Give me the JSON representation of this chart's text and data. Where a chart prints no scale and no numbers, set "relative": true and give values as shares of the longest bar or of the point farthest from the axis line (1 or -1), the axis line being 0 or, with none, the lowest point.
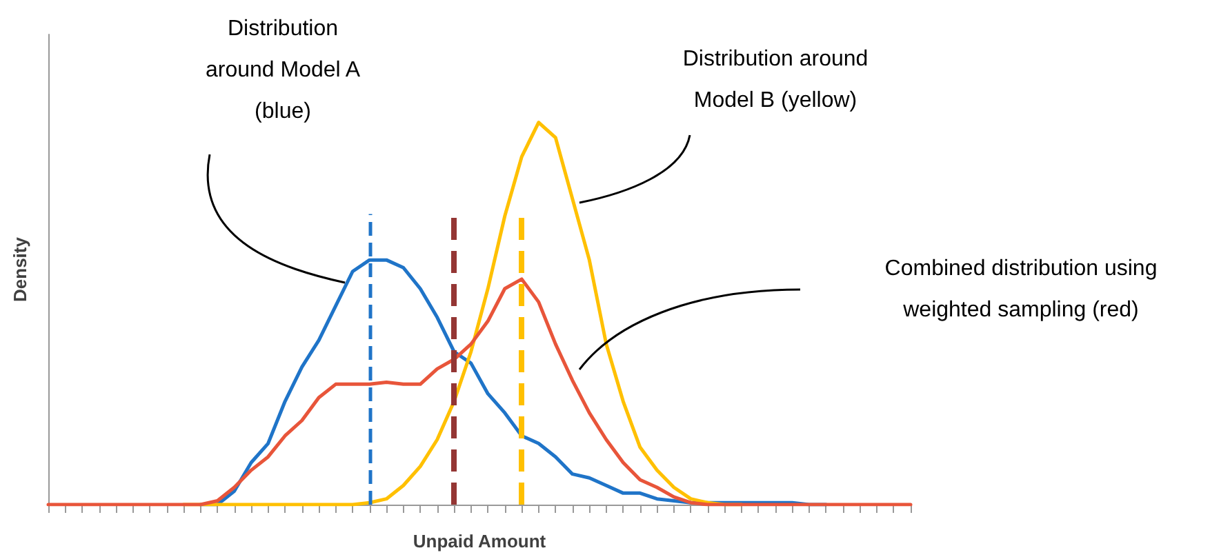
{
  "chart_data": {
    "type": "line",
    "relative": true,
    "xlabel": "Unpaid Amount",
    "ylabel": "Density",
    "grid": false,
    "marker": "none",
    "line_style": "solid",
    "categories": [
      null,
      null,
      null,
      null,
      null,
      null,
      null,
      null,
      null,
      null,
      null,
      null,
      null,
      null,
      null,
      null,
      null,
      null,
      null,
      null,
      null,
      null,
      null,
      null,
      null,
      null,
      null,
      null,
      null,
      null,
      null,
      null,
      null,
      null,
      null,
      null,
      null,
      null,
      null,
      null,
      null,
      null,
      null,
      null,
      null,
      null,
      null,
      null,
      null,
      null,
      null,
      null
    ],
    "series": [
      {
        "color": "#1f74c8",
        "values": [
          null,
          null,
          null,
          null,
          null,
          null,
          null,
          null,
          null,
          0,
          0,
          0.035,
          0.11,
          0.16,
          0.27,
          0.36,
          0.43,
          0.52,
          0.61,
          0.64,
          0.64,
          0.62,
          0.565,
          0.49,
          0.4,
          0.37,
          0.29,
          0.24,
          0.18,
          0.16,
          0.125,
          0.08,
          0.07,
          0.05,
          0.03,
          0.03,
          0.015,
          0.01,
          0.005,
          0.005,
          0.005,
          0.005,
          0.005,
          0.005,
          0.005,
          0,
          0,
          null,
          null,
          null,
          null,
          null
        ]
      },
      {
        "color": "#ffc000",
        "values": [
          null,
          null,
          null,
          null,
          null,
          null,
          null,
          null,
          0,
          0,
          0,
          0,
          0,
          0,
          0,
          0,
          0,
          0,
          0,
          0.005,
          0.015,
          0.05,
          0.1,
          0.17,
          0.27,
          0.4,
          0.565,
          0.755,
          0.91,
          1,
          0.96,
          0.8,
          0.64,
          0.42,
          0.27,
          0.15,
          0.09,
          0.045,
          0.015,
          0.005,
          0,
          0,
          null,
          null,
          null,
          null,
          null,
          null,
          null,
          null,
          null,
          null
        ]
      },
      {
        "color": "#e8553a",
        "values": [
          0,
          0,
          0,
          0,
          0,
          0,
          0,
          0,
          0,
          0,
          0.01,
          0.045,
          0.09,
          0.125,
          0.18,
          0.22,
          0.28,
          0.315,
          0.315,
          0.315,
          0.32,
          0.315,
          0.315,
          0.355,
          0.38,
          0.42,
          0.48,
          0.565,
          0.59,
          0.53,
          0.42,
          0.325,
          0.24,
          0.17,
          0.11,
          0.065,
          0.045,
          0.02,
          0.005,
          0,
          0,
          0,
          0,
          0,
          0,
          0,
          0,
          0,
          0,
          0,
          0,
          0
        ]
      }
    ],
    "annotations": [
      "Distribution\naround Model A\n(blue)",
      "Distribution around\nModel B (yellow)",
      "Combined distribution using\nweighted sampling (red)"
    ]
  }
}
